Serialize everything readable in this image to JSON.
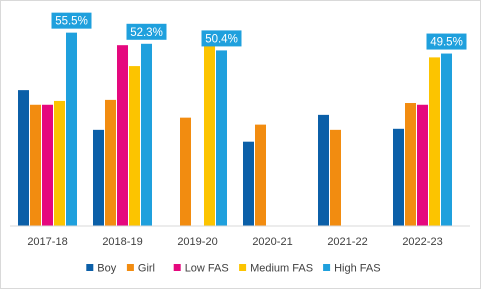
{
  "chart_data": {
    "type": "bar",
    "categories": [
      "2017-18",
      "2018-19",
      "2019-20",
      "2020-21",
      "2021-22",
      "2022-23"
    ],
    "series": [
      {
        "name": "Boy",
        "color": "#0b5fa8",
        "values": [
          39.0,
          27.6,
          null,
          24.2,
          31.9,
          27.9
        ]
      },
      {
        "name": "Girl",
        "color": "#f28c10",
        "values": [
          34.8,
          36.2,
          31.1,
          29.1,
          27.6,
          35.3
        ]
      },
      {
        "name": "Low FAS",
        "color": "#e5087e",
        "values": [
          34.8,
          51.9,
          null,
          null,
          null,
          34.8
        ]
      },
      {
        "name": "Medium FAS",
        "color": "#fcc400",
        "values": [
          35.9,
          45.9,
          51.9,
          null,
          null,
          48.4
        ]
      },
      {
        "name": "High FAS",
        "color": "#1fa0dd",
        "values": [
          55.5,
          52.3,
          50.4,
          null,
          null,
          49.5
        ],
        "value_labels": [
          "55.5%",
          "52.3%",
          "50.4%",
          null,
          null,
          "49.5%"
        ]
      }
    ],
    "ylim": [
      0,
      62
    ]
  }
}
